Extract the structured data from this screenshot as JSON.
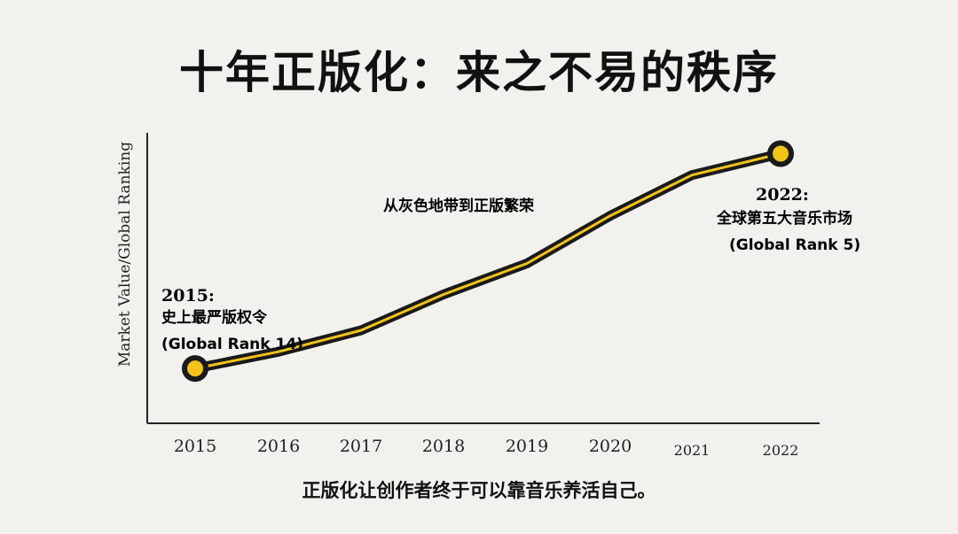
{
  "title": "十年正版化：来之不易的秩序",
  "caption": "正版化让创作者终于可以靠音乐养活自己。",
  "colors": {
    "line": "#f2c318",
    "line_outline": "#1a1a1a",
    "axis": "#222222",
    "background": "#f2f1ee"
  },
  "chart_data": {
    "type": "line",
    "title": "十年正版化：来之不易的秩序",
    "xlabel": "",
    "ylabel": "Market Value/Global Ranking",
    "categories": [
      "2015",
      "2016",
      "2017",
      "2018",
      "2019",
      "2020",
      "2021",
      "2022"
    ],
    "series": [
      {
        "values": [
          14,
          13.3,
          12.4,
          10.9,
          9.6,
          7.6,
          5.9,
          5
        ]
      }
    ],
    "y_reversed": true,
    "ylim": [
      16,
      4.5
    ],
    "grid": false,
    "legend": "none",
    "annotations": [
      {
        "year": "2015:",
        "text": "史上最严版权令",
        "rank": "(Global Rank 14)"
      },
      {
        "text": "从灰色地带到正版繁荣"
      },
      {
        "year": "2022:",
        "text": "全球第五大音乐市场",
        "rank": "(Global Rank 5)"
      }
    ]
  }
}
